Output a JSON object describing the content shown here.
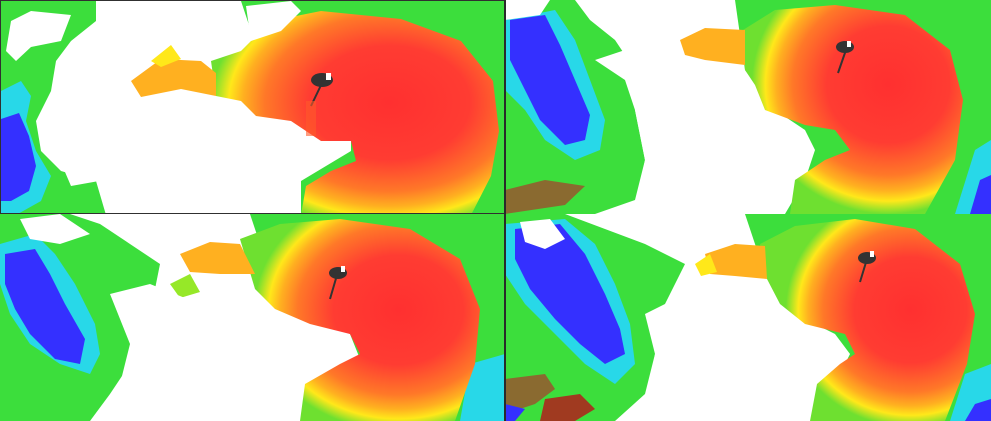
{
  "figure": {
    "panels": [
      {
        "id": "top-left"
      },
      {
        "id": "top-right"
      },
      {
        "id": "bottom-left"
      },
      {
        "id": "bottom-right"
      }
    ],
    "colors": {
      "core": "#ff3c32",
      "high": "#ff6a28",
      "mid_high": "#ff9a20",
      "mid": "#ffe81a",
      "low_mid": "#96e828",
      "low": "#3cde3c",
      "cyan": "#28d8e8",
      "blue": "#3430ff",
      "background": "#ffffff",
      "marker": "#333333"
    }
  }
}
